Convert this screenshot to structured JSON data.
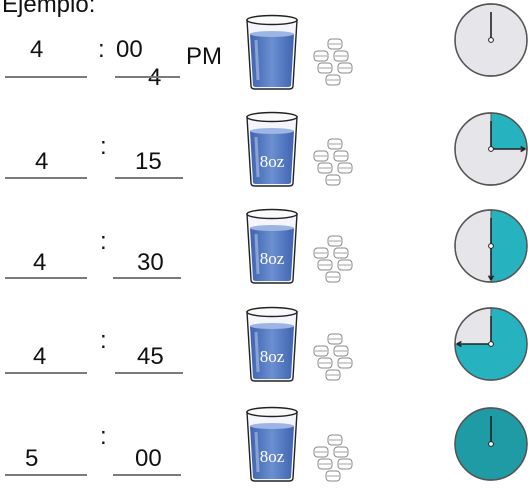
{
  "title": "Ejemplo:",
  "glass_label": "8oz",
  "colors": {
    "clock_face": "#e6e6ea",
    "clock_fill": "#26b3bf",
    "clock_fill_full": "#1f9ba6",
    "water": "#6b8fd0",
    "water_dark": "#3f63b0",
    "line": "#7a7a7a"
  },
  "rows": [
    {
      "hour": "4",
      "separator": ":",
      "minute": "00",
      "ampm": "PM",
      "minute_note": "4",
      "glass_icon": "water-glass-icon",
      "ice_icon": "ice-cubes-icon",
      "clock_elapsed": 0.0
    },
    {
      "hour": "4",
      "separator": ":",
      "minute": "15",
      "glass_icon": "water-glass-icon",
      "ice_icon": "ice-cubes-icon",
      "clock_elapsed": 0.25
    },
    {
      "hour": "4",
      "separator": ":",
      "minute": "30",
      "glass_icon": "water-glass-icon",
      "ice_icon": "ice-cubes-icon",
      "clock_elapsed": 0.5
    },
    {
      "hour": "4",
      "separator": ":",
      "minute": "45",
      "glass_icon": "water-glass-icon",
      "ice_icon": "ice-cubes-icon",
      "clock_elapsed": 0.75
    },
    {
      "hour": "5",
      "separator": ":",
      "minute": "00",
      "glass_icon": "water-glass-icon",
      "ice_icon": "ice-cubes-icon",
      "clock_elapsed": 1.0
    }
  ]
}
